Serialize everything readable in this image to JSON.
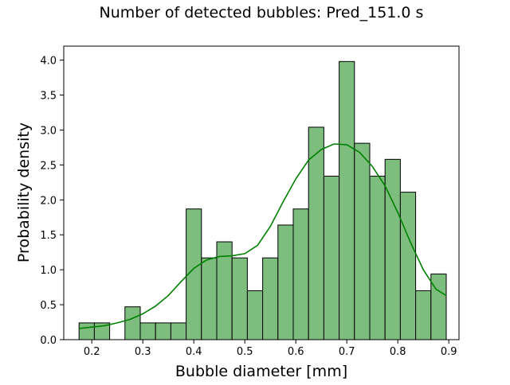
{
  "chart_data": {
    "type": "bar",
    "title": "Number of detected bubbles: Pred_151.0 s",
    "xlabel": "Bubble diameter [mm]",
    "ylabel": "Probability density",
    "xlim": [
      0.145,
      0.92
    ],
    "ylim": [
      0,
      4.2
    ],
    "xticks": [
      0.2,
      0.3,
      0.4,
      0.5,
      0.6,
      0.7,
      0.8,
      0.9
    ],
    "xtick_labels": [
      "0.2",
      "0.3",
      "0.4",
      "0.5",
      "0.6",
      "0.7",
      "0.8",
      "0.9"
    ],
    "yticks": [
      0.0,
      0.5,
      1.0,
      1.5,
      2.0,
      2.5,
      3.0,
      3.5,
      4.0
    ],
    "ytick_labels": [
      "0.0",
      "0.5",
      "1.0",
      "1.5",
      "2.0",
      "2.5",
      "3.0",
      "3.5",
      "4.0"
    ],
    "grid": false,
    "bar_color": "#7dbd7d",
    "edge_color": "#000000",
    "bin_edges": [
      0.175,
      0.205,
      0.235,
      0.265,
      0.295,
      0.325,
      0.355,
      0.385,
      0.415,
      0.445,
      0.475,
      0.505,
      0.535,
      0.565,
      0.595,
      0.625,
      0.655,
      0.685,
      0.715,
      0.745,
      0.775,
      0.805,
      0.835,
      0.865,
      0.895
    ],
    "values": [
      0.24,
      0.24,
      0.0,
      0.47,
      0.24,
      0.24,
      0.24,
      1.87,
      1.17,
      1.4,
      1.17,
      0.7,
      1.17,
      1.64,
      1.87,
      3.04,
      2.34,
      3.98,
      2.81,
      2.34,
      2.58,
      2.11,
      0.7,
      0.94
    ],
    "kde": {
      "name": "",
      "color": "#008000",
      "x": [
        0.175,
        0.2,
        0.225,
        0.25,
        0.275,
        0.3,
        0.325,
        0.35,
        0.375,
        0.4,
        0.425,
        0.45,
        0.475,
        0.5,
        0.525,
        0.55,
        0.575,
        0.6,
        0.625,
        0.65,
        0.675,
        0.7,
        0.725,
        0.75,
        0.775,
        0.8,
        0.825,
        0.85,
        0.875,
        0.895
      ],
      "y": [
        0.16,
        0.18,
        0.2,
        0.24,
        0.29,
        0.37,
        0.48,
        0.63,
        0.83,
        1.02,
        1.14,
        1.19,
        1.2,
        1.23,
        1.35,
        1.62,
        1.97,
        2.3,
        2.57,
        2.72,
        2.8,
        2.79,
        2.68,
        2.48,
        2.2,
        1.82,
        1.39,
        1.0,
        0.72,
        0.63
      ]
    }
  }
}
